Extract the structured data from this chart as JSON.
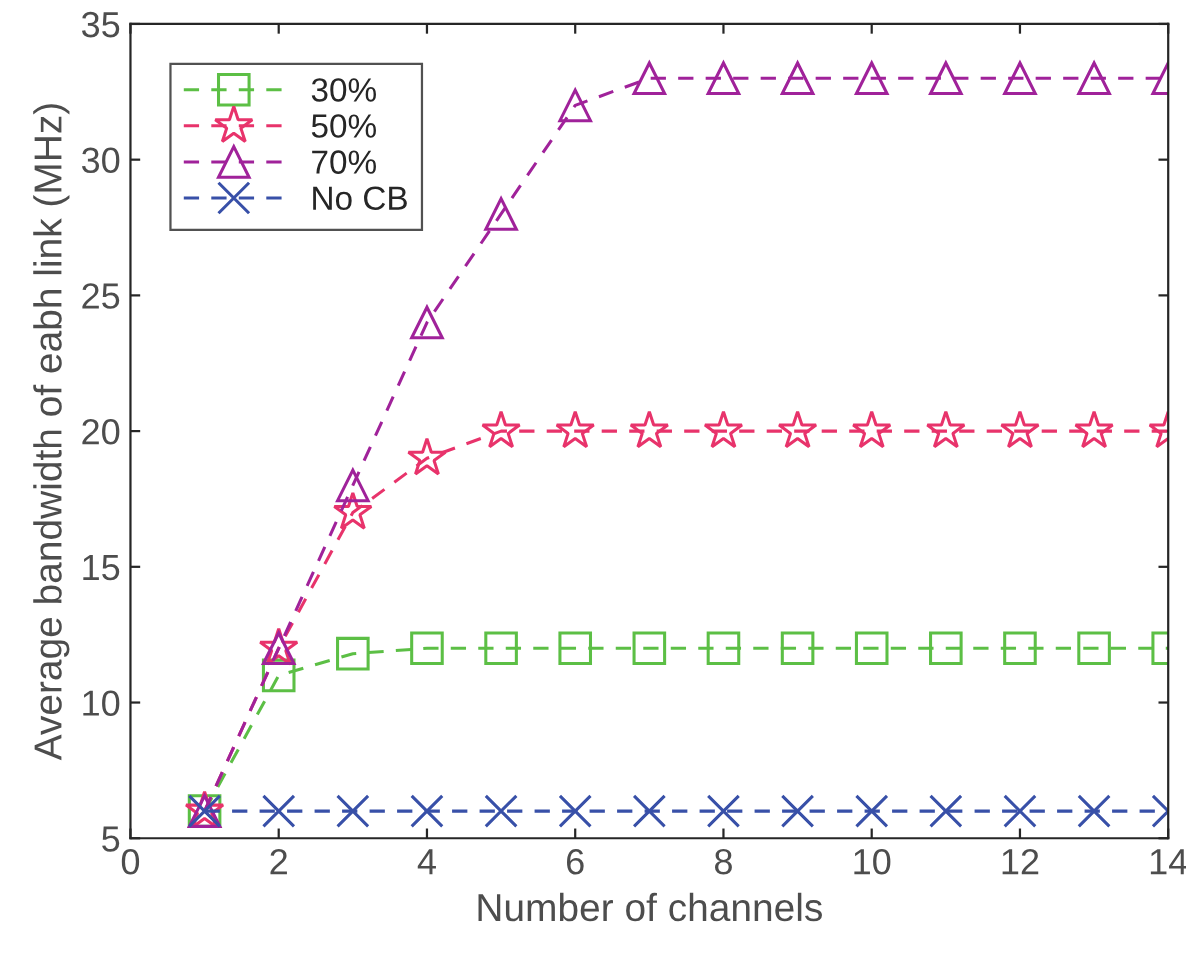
{
  "chart_data": {
    "type": "line",
    "xlabel": "Number of channels",
    "ylabel": "Average bandwidth of eabh link (MHz)",
    "x": [
      1,
      2,
      3,
      4,
      5,
      6,
      7,
      8,
      9,
      10,
      11,
      12,
      13,
      14
    ],
    "series": [
      {
        "name": "30%",
        "color": "#5cbf45",
        "marker": "square",
        "values": [
          6,
          11,
          11.8,
          12,
          12,
          12,
          12,
          12,
          12,
          12,
          12,
          12,
          12,
          12
        ]
      },
      {
        "name": "50%",
        "color": "#e8336b",
        "marker": "star",
        "values": [
          6,
          12,
          17,
          19,
          20,
          20,
          20,
          20,
          20,
          20,
          20,
          20,
          20,
          20
        ]
      },
      {
        "name": "70%",
        "color": "#a0229a",
        "marker": "triangle",
        "values": [
          6,
          12,
          18,
          24,
          28,
          32,
          33,
          33,
          33,
          33,
          33,
          33,
          33,
          33
        ]
      },
      {
        "name": "No CB",
        "color": "#3850a8",
        "marker": "cross",
        "values": [
          6,
          6,
          6,
          6,
          6,
          6,
          6,
          6,
          6,
          6,
          6,
          6,
          6,
          6
        ]
      }
    ],
    "line_style": "dashed",
    "xlim": [
      0,
      14
    ],
    "ylim": [
      5,
      35
    ],
    "xticks": [
      0,
      2,
      4,
      6,
      8,
      10,
      12,
      14
    ],
    "yticks": [
      5,
      10,
      15,
      20,
      25,
      30,
      35
    ],
    "grid": false,
    "legend": "top left"
  }
}
